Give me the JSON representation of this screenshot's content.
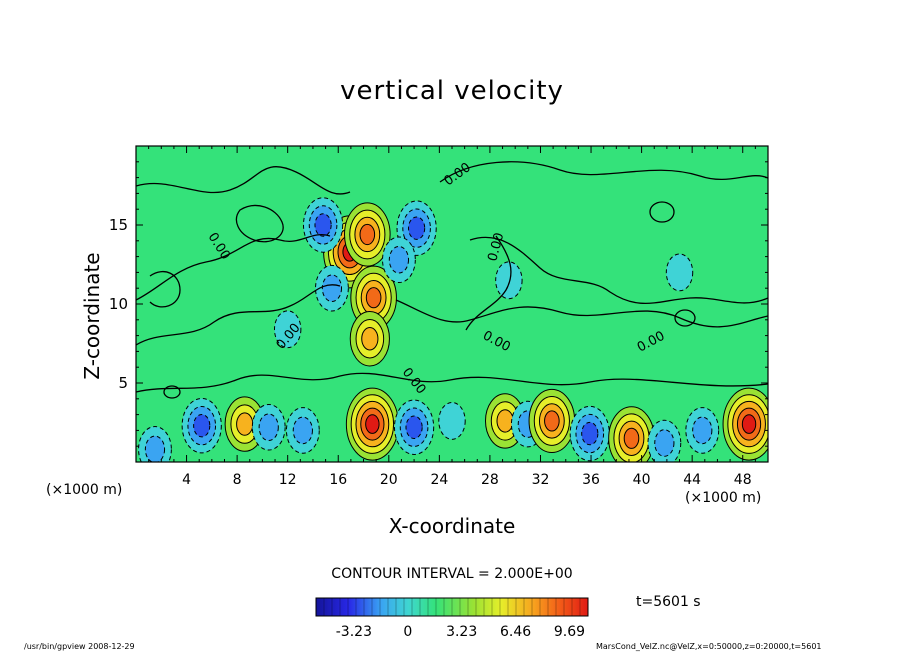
{
  "chart_data": {
    "type": "heatmap",
    "title": "vertical velocity",
    "xlabel": "X-coordinate",
    "ylabel": "Z-coordinate",
    "x_unit_left": "(×1000 m)",
    "x_unit_right": "(×1000 m)",
    "x_ticks": [
      "4",
      "8",
      "12",
      "16",
      "20",
      "24",
      "28",
      "32",
      "36",
      "40",
      "44",
      "48"
    ],
    "x_tick_values": [
      4,
      8,
      12,
      16,
      20,
      24,
      28,
      32,
      36,
      40,
      44,
      48
    ],
    "y_ticks": [
      "5",
      "10",
      "15"
    ],
    "y_tick_values": [
      5,
      10,
      15
    ],
    "xlim": [
      0,
      50
    ],
    "ylim": [
      0,
      20
    ],
    "contour_label": "0.00",
    "contour_interval": "CONTOUR INTERVAL = 2.000E+00",
    "colorbar": {
      "ticks": [
        "-3.23",
        "0",
        "3.23",
        "6.46",
        "9.69"
      ],
      "tick_values": [
        -3.23,
        0,
        3.23,
        6.46,
        9.69
      ],
      "range": [
        -5.5,
        10.8
      ]
    },
    "features": [
      {
        "x": 1.5,
        "z": 0.8,
        "value": -4.5
      },
      {
        "x": 5.2,
        "z": 2.3,
        "value": -5.5
      },
      {
        "x": 8.6,
        "z": 2.4,
        "value": 5.5
      },
      {
        "x": 10.5,
        "z": 2.2,
        "value": -3.2
      },
      {
        "x": 13.2,
        "z": 2.0,
        "value": -4.8
      },
      {
        "x": 18.7,
        "z": 2.4,
        "value": 9.8
      },
      {
        "x": 22.0,
        "z": 2.2,
        "value": -5.0
      },
      {
        "x": 25.0,
        "z": 2.6,
        "value": -2.8
      },
      {
        "x": 29.2,
        "z": 2.6,
        "value": 6.0
      },
      {
        "x": 31.0,
        "z": 2.4,
        "value": -3.0
      },
      {
        "x": 32.9,
        "z": 2.6,
        "value": 8.6
      },
      {
        "x": 35.9,
        "z": 1.8,
        "value": -5.5
      },
      {
        "x": 39.2,
        "z": 1.5,
        "value": 7.2
      },
      {
        "x": 41.8,
        "z": 1.2,
        "value": -3.5
      },
      {
        "x": 44.8,
        "z": 2.0,
        "value": -4.0
      },
      {
        "x": 48.5,
        "z": 2.4,
        "value": 9.0
      },
      {
        "x": 16.9,
        "z": 13.3,
        "value": 10.5
      },
      {
        "x": 18.3,
        "z": 14.4,
        "value": 7.5
      },
      {
        "x": 18.8,
        "z": 10.4,
        "value": 8.5
      },
      {
        "x": 18.5,
        "z": 7.8,
        "value": 6.5
      },
      {
        "x": 14.8,
        "z": 15.0,
        "value": -5.5
      },
      {
        "x": 22.2,
        "z": 14.8,
        "value": -5.5
      },
      {
        "x": 20.8,
        "z": 12.8,
        "value": -3.0
      },
      {
        "x": 15.5,
        "z": 11.0,
        "value": -3.0
      },
      {
        "x": 12.0,
        "z": 8.4,
        "value": -2.5
      },
      {
        "x": 29.5,
        "z": 11.5,
        "value": -2.0
      },
      {
        "x": 43.0,
        "z": 12.0,
        "value": -2.0
      }
    ]
  },
  "annotations": {
    "time": "t=5601 s",
    "footer_left": "/usr/bin/gpview   2008-12-29",
    "footer_right": "MarsCond_VelZ.nc@VelZ,x=0:50000,z=0:20000,t=5601"
  },
  "colors": {
    "background_field": "#34e27a",
    "positive_ramp": [
      "#34e27a",
      "#9ae234",
      "#e6ee2a",
      "#f7b21e",
      "#f26a18",
      "#e01a14"
    ],
    "negative_ramp": [
      "#34e27a",
      "#3fd3d6",
      "#3aa4f2",
      "#2a56ee",
      "#1e1ec2",
      "#ffffff"
    ],
    "contour": "#000000"
  }
}
